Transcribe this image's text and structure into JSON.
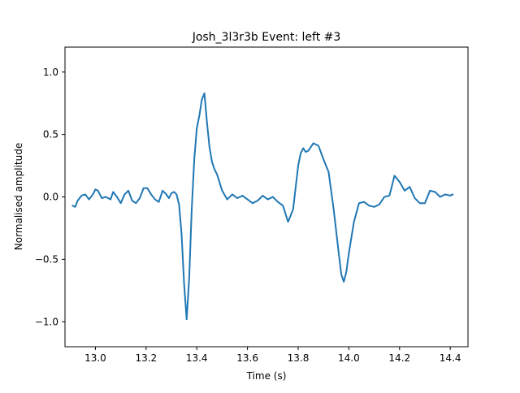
{
  "chart_data": {
    "type": "line",
    "title": "Josh_3l3r3b Event: left #3",
    "xlabel": "Time (s)",
    "ylabel": "Normalised amplitude",
    "xlim": [
      12.88,
      14.47
    ],
    "ylim": [
      -1.2,
      1.2
    ],
    "xticks": [
      13.0,
      13.2,
      13.4,
      13.6,
      13.8,
      14.0,
      14.2,
      14.4
    ],
    "xtick_labels": [
      "13.0",
      "13.2",
      "13.4",
      "13.6",
      "13.8",
      "14.0",
      "14.2",
      "14.4"
    ],
    "yticks": [
      1.0,
      0.5,
      0.0,
      -0.5,
      -1.0
    ],
    "ytick_labels": [
      "1.0",
      "0.5",
      "0.0",
      "−0.5",
      "−1.0"
    ],
    "grid": false,
    "series": [
      {
        "color": "#1f77b4",
        "x": [
          12.91,
          12.92,
          12.93,
          12.945,
          12.96,
          12.975,
          12.99,
          13.0,
          13.01,
          13.025,
          13.04,
          13.05,
          13.06,
          13.07,
          13.085,
          13.1,
          13.115,
          13.13,
          13.145,
          13.16,
          13.175,
          13.19,
          13.205,
          13.22,
          13.235,
          13.25,
          13.265,
          13.28,
          13.29,
          13.3,
          13.31,
          13.32,
          13.33,
          13.34,
          13.35,
          13.36,
          13.37,
          13.38,
          13.39,
          13.4,
          13.41,
          13.42,
          13.43,
          13.44,
          13.45,
          13.46,
          13.47,
          13.48,
          13.5,
          13.52,
          13.54,
          13.56,
          13.58,
          13.6,
          13.62,
          13.64,
          13.66,
          13.68,
          13.7,
          13.72,
          13.74,
          13.76,
          13.78,
          13.8,
          13.81,
          13.82,
          13.83,
          13.84,
          13.86,
          13.88,
          13.9,
          13.92,
          13.94,
          13.96,
          13.97,
          13.98,
          13.99,
          14.0,
          14.02,
          14.04,
          14.06,
          14.08,
          14.1,
          14.12,
          14.14,
          14.16,
          14.18,
          14.2,
          14.22,
          14.24,
          14.26,
          14.28,
          14.3,
          14.32,
          14.34,
          14.36,
          14.38,
          14.4,
          14.41
        ],
        "y": [
          -0.07,
          -0.08,
          -0.03,
          0.01,
          0.02,
          -0.02,
          0.02,
          0.06,
          0.05,
          -0.01,
          0.0,
          -0.01,
          -0.02,
          0.04,
          0.0,
          -0.05,
          0.02,
          0.05,
          -0.03,
          -0.05,
          -0.01,
          0.07,
          0.07,
          0.02,
          -0.02,
          -0.04,
          0.05,
          0.02,
          -0.01,
          0.03,
          0.04,
          0.02,
          -0.06,
          -0.3,
          -0.7,
          -0.98,
          -0.65,
          -0.1,
          0.3,
          0.55,
          0.65,
          0.78,
          0.83,
          0.6,
          0.4,
          0.28,
          0.22,
          0.18,
          0.05,
          -0.02,
          0.02,
          -0.01,
          0.01,
          -0.02,
          -0.05,
          -0.03,
          0.01,
          -0.02,
          0.0,
          -0.04,
          -0.07,
          -0.2,
          -0.1,
          0.25,
          0.35,
          0.39,
          0.36,
          0.37,
          0.43,
          0.41,
          0.3,
          0.2,
          -0.1,
          -0.45,
          -0.62,
          -0.68,
          -0.6,
          -0.45,
          -0.2,
          -0.05,
          -0.04,
          -0.07,
          -0.08,
          -0.06,
          0.0,
          0.01,
          0.17,
          0.12,
          0.05,
          0.08,
          -0.01,
          -0.05,
          -0.05,
          0.05,
          0.04,
          0.0,
          0.02,
          0.01,
          0.02
        ]
      }
    ]
  }
}
